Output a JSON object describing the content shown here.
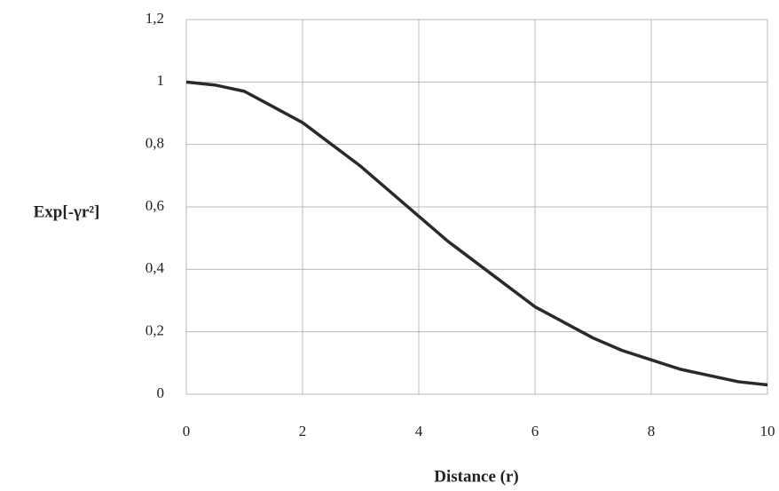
{
  "chart_data": {
    "type": "line",
    "x_label": "Distance (r)",
    "y_label": "Exp[-γr²]",
    "x": [
      0,
      0.5,
      1,
      1.5,
      2,
      2.5,
      3,
      3.5,
      4,
      4.5,
      5,
      5.5,
      6,
      6.5,
      7,
      7.5,
      8,
      8.5,
      9,
      9.5,
      10
    ],
    "values": [
      1,
      0.99,
      0.97,
      0.92,
      0.87,
      0.8,
      0.73,
      0.65,
      0.57,
      0.49,
      0.42,
      0.35,
      0.28,
      0.23,
      0.18,
      0.14,
      0.11,
      0.08,
      0.06,
      0.04,
      0.03
    ],
    "color": "#2a2a2a",
    "xlim": [
      0,
      10
    ],
    "ylim": [
      0,
      1.2
    ],
    "xticks": [
      0,
      2,
      4,
      6,
      8,
      10
    ],
    "yticks": [
      0,
      {
        "value": 0.2,
        "label": "0,2"
      },
      {
        "value": 0.4,
        "label": "0,4"
      },
      {
        "value": 0.6,
        "label": "0,6"
      },
      {
        "value": 0.8,
        "label": "0,8"
      },
      1,
      {
        "value": 1.2,
        "label": "1,2"
      }
    ],
    "grid": true
  }
}
